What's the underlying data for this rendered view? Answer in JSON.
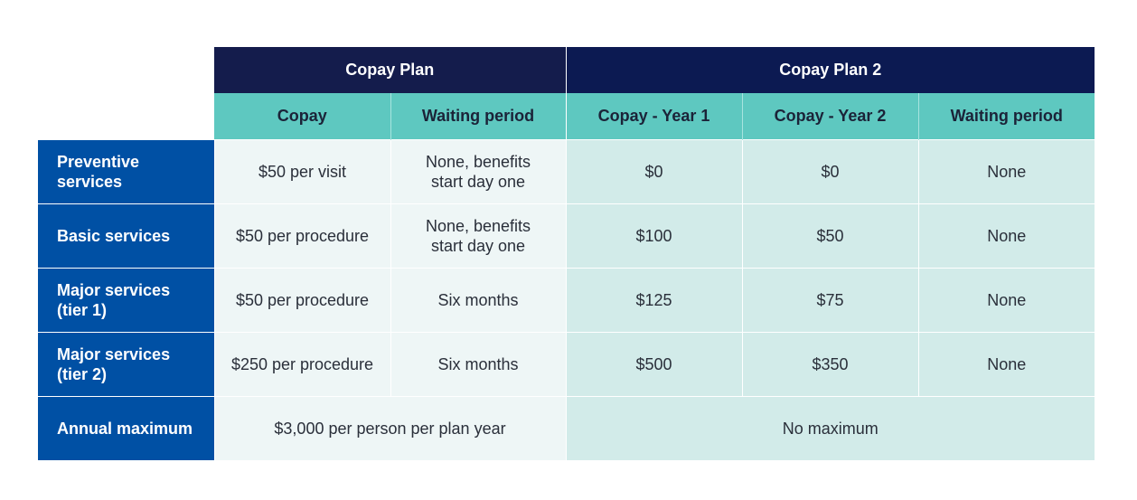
{
  "header": {
    "plan1_title": "Copay Plan",
    "plan2_title": "Copay Plan 2",
    "columns": [
      "Copay",
      "Waiting period",
      "Copay - Year 1",
      "Copay - Year 2",
      "Waiting period"
    ]
  },
  "rows": [
    {
      "label_lines": [
        "Preventive",
        "services"
      ],
      "copay": "$50 per visit",
      "waiting_lines": [
        "None, benefits",
        "start day one"
      ],
      "year1": "$0",
      "year2": "$0",
      "waiting2": "None"
    },
    {
      "label_lines": [
        "Basic services"
      ],
      "copay": "$50 per procedure",
      "waiting_lines": [
        "None, benefits",
        "start day one"
      ],
      "year1": "$100",
      "year2": "$50",
      "waiting2": "None"
    },
    {
      "label_lines": [
        "Major services",
        "(tier 1)"
      ],
      "copay": "$50 per procedure",
      "waiting_lines": [
        "Six months"
      ],
      "year1": "$125",
      "year2": "$75",
      "waiting2": "None"
    },
    {
      "label_lines": [
        "Major services",
        "(tier 2)"
      ],
      "copay": "$250 per procedure",
      "waiting_lines": [
        "Six months"
      ],
      "year1": "$500",
      "year2": "$350",
      "waiting2": "None"
    }
  ],
  "annual": {
    "label": "Annual maximum",
    "plan1": "$3,000 per person per plan year",
    "plan2": "No maximum"
  },
  "colors": {
    "plan_header_bg": "#141c4c",
    "sub_header_bg": "#5ec8c0",
    "row_label_bg": "#0050a4",
    "plan1_cell_bg": "#eef6f6",
    "plan2_cell_bg": "#d2ebe9"
  }
}
